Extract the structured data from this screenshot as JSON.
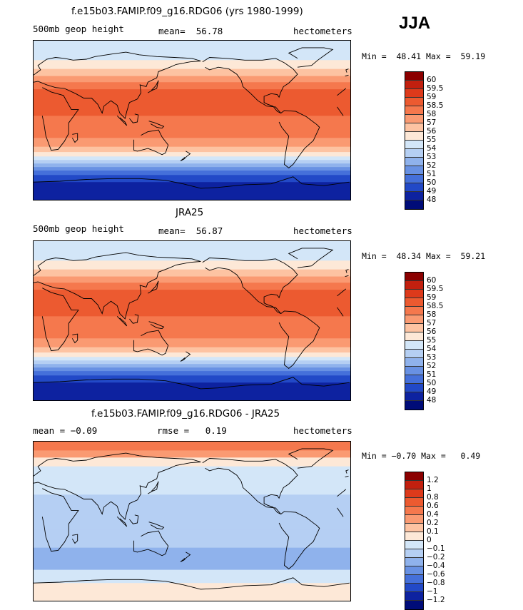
{
  "season": "JJA",
  "units": "hectometers",
  "chart_data": [
    {
      "type": "heatmap",
      "title": "f.e15b03.FAMIP.f09_g16.RDG06 (yrs 1980-1999)",
      "variable": "500mb geop height",
      "mean_label": "mean=",
      "mean": "56.78",
      "units": "hectometers",
      "min_label": "Min =",
      "min": "48.41",
      "max_label": "Max =",
      "max": "59.19",
      "colorbar_labels": [
        "60",
        "59.5",
        "59",
        "58.5",
        "58",
        "57",
        "56",
        "55",
        "54",
        "53",
        "52",
        "51",
        "50",
        "49",
        "48"
      ],
      "colorbar_colors": [
        "#8b0000",
        "#c2200f",
        "#dd3a1b",
        "#ec5a30",
        "#f5784d",
        "#fa9a72",
        "#fdc3a2",
        "#fde8d7",
        "#d3e6f8",
        "#b5cff3",
        "#8fb2ec",
        "#6891e3",
        "#4570da",
        "#2249c7",
        "#0d22a0",
        "#000c78"
      ],
      "bands": [
        {
          "lat_from": 90,
          "lat_to": 68,
          "color": "#d3e6f8"
        },
        {
          "lat_from": 68,
          "lat_to": 58,
          "color": "#fde8d7"
        },
        {
          "lat_from": 58,
          "lat_to": 50,
          "color": "#fdc3a2"
        },
        {
          "lat_from": 50,
          "lat_to": 43,
          "color": "#fa9a72"
        },
        {
          "lat_from": 43,
          "lat_to": 35,
          "color": "#f5784d"
        },
        {
          "lat_from": 35,
          "lat_to": 5,
          "color": "#ec5a30"
        },
        {
          "lat_from": 5,
          "lat_to": -20,
          "color": "#f5784d"
        },
        {
          "lat_from": -20,
          "lat_to": -30,
          "color": "#fa9a72"
        },
        {
          "lat_from": -30,
          "lat_to": -36,
          "color": "#fdc3a2"
        },
        {
          "lat_from": -36,
          "lat_to": -41,
          "color": "#fde8d7"
        },
        {
          "lat_from": -41,
          "lat_to": -45,
          "color": "#d3e6f8"
        },
        {
          "lat_from": -45,
          "lat_to": -49,
          "color": "#b5cff3"
        },
        {
          "lat_from": -49,
          "lat_to": -53,
          "color": "#8fb2ec"
        },
        {
          "lat_from": -53,
          "lat_to": -57,
          "color": "#6891e3"
        },
        {
          "lat_from": -57,
          "lat_to": -62,
          "color": "#4570da"
        },
        {
          "lat_from": -62,
          "lat_to": -70,
          "color": "#2249c7"
        },
        {
          "lat_from": -70,
          "lat_to": -90,
          "color": "#0d22a0"
        }
      ]
    },
    {
      "type": "heatmap",
      "title": "JRA25",
      "variable": "500mb geop height",
      "mean_label": "mean=",
      "mean": "56.87",
      "units": "hectometers",
      "min_label": "Min =",
      "min": "48.34",
      "max_label": "Max =",
      "max": "59.21",
      "colorbar_labels": [
        "60",
        "59.5",
        "59",
        "58.5",
        "58",
        "57",
        "56",
        "55",
        "54",
        "53",
        "52",
        "51",
        "50",
        "49",
        "48"
      ],
      "colorbar_colors": [
        "#8b0000",
        "#c2200f",
        "#dd3a1b",
        "#ec5a30",
        "#f5784d",
        "#fa9a72",
        "#fdc3a2",
        "#fde8d7",
        "#d3e6f8",
        "#b5cff3",
        "#8fb2ec",
        "#6891e3",
        "#4570da",
        "#2249c7",
        "#0d22a0",
        "#000c78"
      ],
      "bands": [
        {
          "lat_from": 90,
          "lat_to": 68,
          "color": "#d3e6f8"
        },
        {
          "lat_from": 68,
          "lat_to": 58,
          "color": "#fde8d7"
        },
        {
          "lat_from": 58,
          "lat_to": 50,
          "color": "#fdc3a2"
        },
        {
          "lat_from": 50,
          "lat_to": 43,
          "color": "#fa9a72"
        },
        {
          "lat_from": 43,
          "lat_to": 35,
          "color": "#f5784d"
        },
        {
          "lat_from": 35,
          "lat_to": 5,
          "color": "#ec5a30"
        },
        {
          "lat_from": 5,
          "lat_to": -20,
          "color": "#f5784d"
        },
        {
          "lat_from": -20,
          "lat_to": -30,
          "color": "#fa9a72"
        },
        {
          "lat_from": -30,
          "lat_to": -36,
          "color": "#fdc3a2"
        },
        {
          "lat_from": -36,
          "lat_to": -41,
          "color": "#fde8d7"
        },
        {
          "lat_from": -41,
          "lat_to": -45,
          "color": "#d3e6f8"
        },
        {
          "lat_from": -45,
          "lat_to": -49,
          "color": "#b5cff3"
        },
        {
          "lat_from": -49,
          "lat_to": -53,
          "color": "#8fb2ec"
        },
        {
          "lat_from": -53,
          "lat_to": -57,
          "color": "#6891e3"
        },
        {
          "lat_from": -57,
          "lat_to": -62,
          "color": "#4570da"
        },
        {
          "lat_from": -62,
          "lat_to": -70,
          "color": "#2249c7"
        },
        {
          "lat_from": -70,
          "lat_to": -90,
          "color": "#0d22a0"
        }
      ]
    },
    {
      "type": "heatmap",
      "title": "f.e15b03.FAMIP.f09_g16.RDG06 - JRA25",
      "mean_label": "mean =",
      "mean": "−0.09",
      "rmse_label": "rmse =",
      "rmse": "0.19",
      "units": "hectometers",
      "min_label": "Min =",
      "min": "−0.70",
      "max_label": "Max =",
      "max": "0.49",
      "colorbar_labels": [
        "1.2",
        "1",
        "0.8",
        "0.6",
        "0.4",
        "0.2",
        "0.1",
        "0",
        "−0.1",
        "−0.2",
        "−0.4",
        "−0.6",
        "−0.8",
        "−1",
        "−1.2"
      ],
      "colorbar_colors": [
        "#8b0000",
        "#c2200f",
        "#dd3a1b",
        "#ec5a30",
        "#f5784d",
        "#fa9a72",
        "#fdc3a2",
        "#fde8d7",
        "#d3e6f8",
        "#b5cff3",
        "#8fb2ec",
        "#6891e3",
        "#4570da",
        "#2249c7",
        "#0d22a0",
        "#000c78"
      ],
      "bands": [
        {
          "lat_from": 90,
          "lat_to": 80,
          "color": "#f5784d"
        },
        {
          "lat_from": 80,
          "lat_to": 72,
          "color": "#fa9a72"
        },
        {
          "lat_from": 72,
          "lat_to": 62,
          "color": "#fde8d7"
        },
        {
          "lat_from": 62,
          "lat_to": 30,
          "color": "#d3e6f8"
        },
        {
          "lat_from": 30,
          "lat_to": -10,
          "color": "#b5cff3"
        },
        {
          "lat_from": -10,
          "lat_to": -30,
          "color": "#b5cff3"
        },
        {
          "lat_from": -30,
          "lat_to": -55,
          "color": "#8fb2ec"
        },
        {
          "lat_from": -55,
          "lat_to": -70,
          "color": "#d3e6f8"
        },
        {
          "lat_from": -70,
          "lat_to": -90,
          "color": "#fde8d7"
        }
      ]
    }
  ]
}
